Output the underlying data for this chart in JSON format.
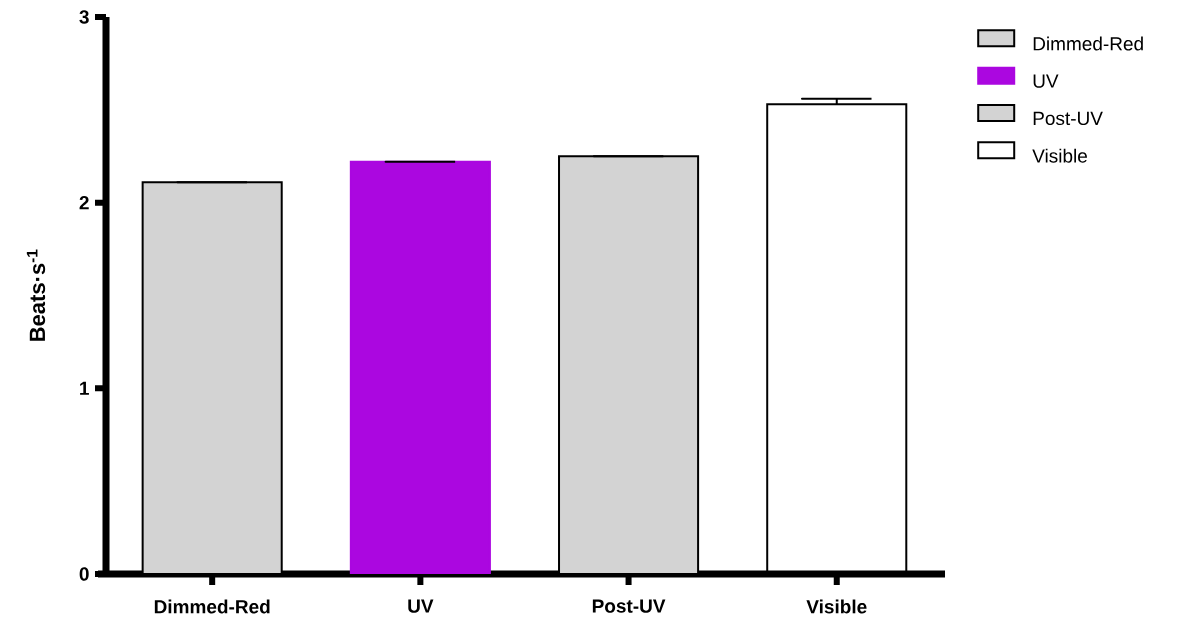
{
  "chart_data": {
    "type": "bar",
    "ylabel": "Beats·s$^{-1}$",
    "categories": [
      "Dimmed-Red",
      "UV",
      "Post-UV",
      "Visible"
    ],
    "series": [
      {
        "name": "Dimmed-Red",
        "color": "#d3d3d3",
        "values": [
          2.11,
          null,
          null,
          null
        ],
        "errors": [
          [
            2.11,
            2.11
          ],
          null,
          null,
          null
        ]
      },
      {
        "name": "UV",
        "color": "#ab07e0",
        "values": [
          null,
          2.22,
          null,
          null
        ],
        "errors": [
          null,
          [
            2.22,
            2.22
          ],
          null,
          null
        ]
      },
      {
        "name": "Post-UV",
        "color": "#d3d3d3",
        "values": [
          null,
          null,
          2.25,
          null
        ],
        "errors": [
          null,
          null,
          [
            2.25,
            2.25
          ],
          null
        ]
      },
      {
        "name": "Visible",
        "color": "#000000",
        "values": [
          null,
          null,
          null,
          2.53
        ],
        "errors": [
          null,
          null,
          null,
          [
            2.53,
            2.56
          ]
        ]
      }
    ],
    "ylim": [
      0,
      3
    ],
    "yticks": [
      0,
      1,
      2,
      3
    ],
    "legend": "top right"
  }
}
